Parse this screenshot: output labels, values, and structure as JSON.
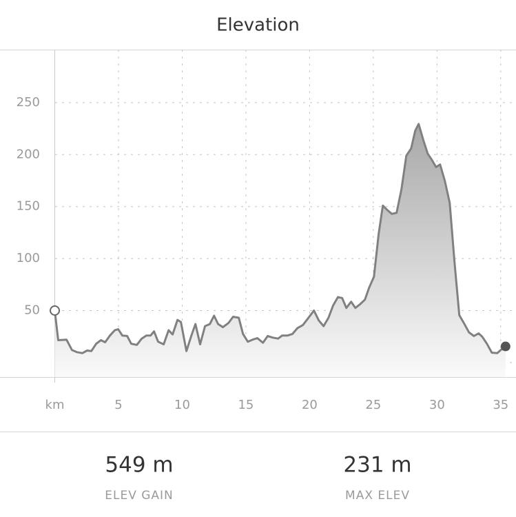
{
  "chart_data": {
    "type": "area",
    "title": "Elevation",
    "x": [
      0,
      0.27,
      0.92,
      1.35,
      1.73,
      2.16,
      2.54,
      2.87,
      3.25,
      3.62,
      3.95,
      4.33,
      4.71,
      4.98,
      5.3,
      5.68,
      6.0,
      6.44,
      6.82,
      7.19,
      7.52,
      7.79,
      8.11,
      8.55,
      8.93,
      9.25,
      9.63,
      9.9,
      10.33,
      10.71,
      11.04,
      11.41,
      11.79,
      12.17,
      12.5,
      12.82,
      13.2,
      13.63,
      14.0,
      14.44,
      14.77,
      15.15,
      15.53,
      15.9,
      16.34,
      16.71,
      17.09,
      17.53,
      17.85,
      18.28,
      18.66,
      19.04,
      19.47,
      19.85,
      20.34,
      20.72,
      21.1,
      21.48,
      21.85,
      22.23,
      22.56,
      22.88,
      23.26,
      23.59,
      23.96,
      24.34,
      24.67,
      25.05,
      25.42,
      25.75,
      26.07,
      26.45,
      26.83,
      27.21,
      27.59,
      27.97,
      28.29,
      28.56,
      28.94,
      29.27,
      29.59,
      29.92,
      30.24,
      30.62,
      31.0,
      31.37,
      31.75,
      32.13,
      32.51,
      32.89,
      33.27,
      33.54,
      33.92,
      34.3,
      34.73,
      35.0,
      35.38
    ],
    "y": [
      50,
      21.5,
      22,
      12,
      10,
      9,
      11.5,
      11,
      18,
      21.5,
      19.5,
      26,
      31,
      32,
      26,
      25.5,
      18,
      17,
      23,
      26,
      26,
      30,
      20,
      17.5,
      31,
      27,
      41,
      39,
      11,
      25.5,
      37,
      17.5,
      35,
      37,
      45,
      37,
      34,
      38,
      44,
      43,
      27.5,
      20,
      22,
      23.5,
      19,
      25.5,
      24,
      23,
      26,
      26,
      27.5,
      33,
      36,
      42,
      50,
      40.5,
      35,
      43,
      55,
      63,
      62,
      52.5,
      58.5,
      52.5,
      56,
      60.5,
      72,
      82.5,
      123.5,
      151,
      147,
      143,
      144,
      166.5,
      199,
      206,
      223,
      229.5,
      213.5,
      201,
      195,
      188,
      190.5,
      174.5,
      153.5,
      97,
      45.5,
      37.5,
      29,
      25.5,
      28,
      25,
      18,
      9.5,
      9,
      12,
      15.5
    ],
    "color": "#808080",
    "xlim": [
      -4.3,
      36.2
    ],
    "xticks": [
      {
        "value": 0,
        "label": "km"
      },
      5,
      10,
      15,
      20,
      25,
      30,
      35
    ],
    "ylim": [
      -14,
      301
    ],
    "yticks": [
      {
        "value": 0,
        "label": null
      },
      50,
      100,
      150,
      200,
      250
    ],
    "grid": true
  },
  "stats": [
    {
      "value": "549 m",
      "label": "ELEV GAIN"
    },
    {
      "value": "231 m",
      "label": "MAX ELEV"
    }
  ]
}
